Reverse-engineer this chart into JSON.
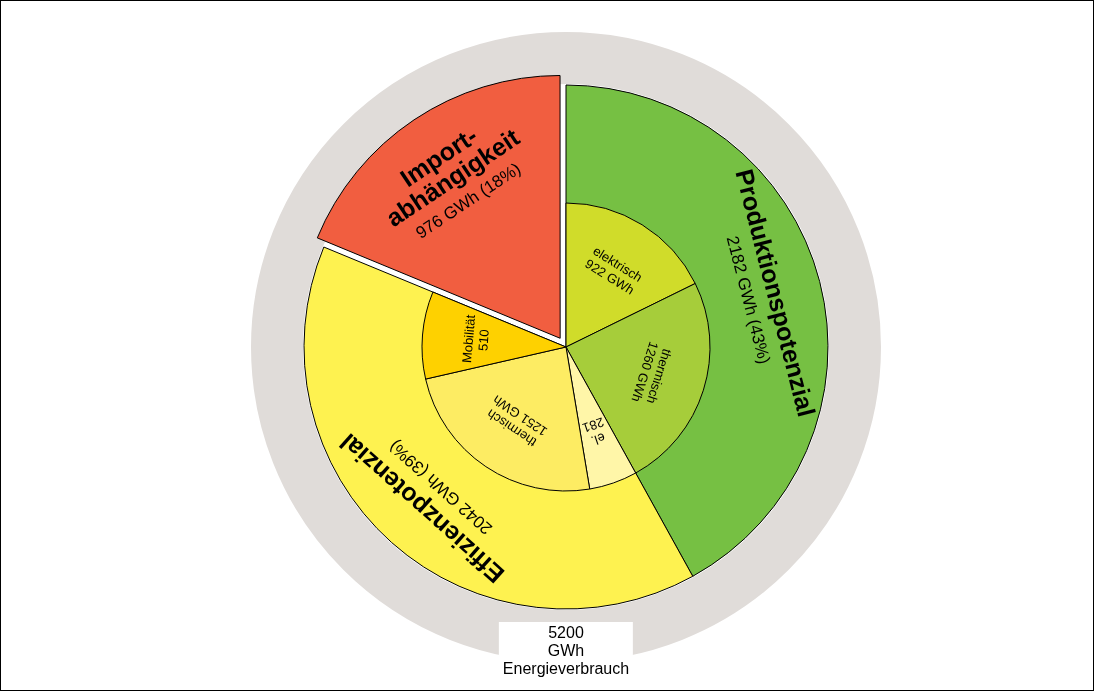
{
  "chart_data": [
    {
      "type": "pie",
      "data_labels": true,
      "categories": [
        "Produktionspotenzial",
        "Effizienzpotenzial",
        "Import-abhängigkeit"
      ],
      "values": [
        2182,
        2042,
        976
      ],
      "colors": [
        "#76c043",
        "#fef250",
        "#f15e40"
      ],
      "value_labels": [
        "2182 GWh (43%)",
        "2042 GWh (39%)",
        "976 GWh (18%)"
      ],
      "annotations": [
        "5200 GWh Energieverbrauch"
      ]
    },
    {
      "type": "other",
      "data_labels": true,
      "categories": [
        "elektrisch",
        "thermisch",
        "el.",
        "thermisch",
        "Mobilität"
      ],
      "values": [
        922,
        1260,
        281,
        1251,
        510
      ],
      "colors": [
        "#d0dc2a",
        "#a6cd3a",
        "#fff6a8",
        "#fdec63",
        "#fed100"
      ],
      "value_labels": [
        "922 GWh",
        "1260 GWh",
        "281",
        "1251 GWh",
        "510"
      ]
    }
  ]
}
